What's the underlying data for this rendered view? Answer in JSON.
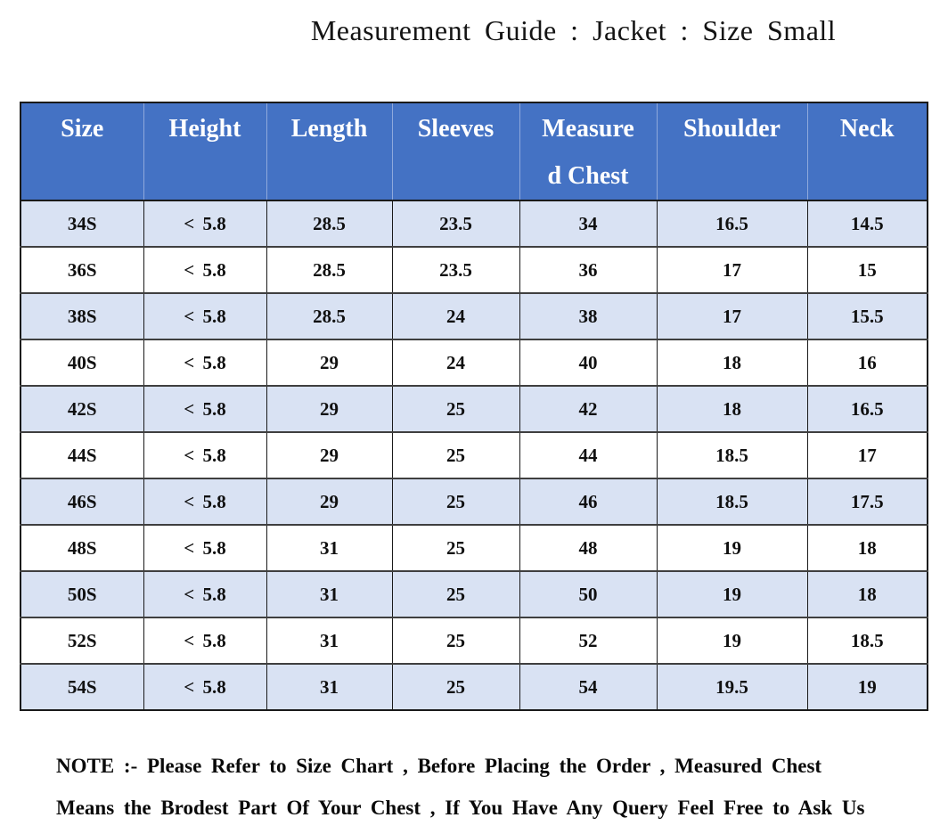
{
  "page_title": "Measurement Guide : Jacket : Size Small",
  "table": {
    "columns": [
      {
        "key": "size",
        "label": "Size",
        "lines": [
          "Size"
        ]
      },
      {
        "key": "height",
        "label": "Height",
        "lines": [
          "Height"
        ]
      },
      {
        "key": "length",
        "label": "Length",
        "lines": [
          "Length"
        ]
      },
      {
        "key": "sleeves",
        "label": "Sleeves",
        "lines": [
          "Sleeves"
        ]
      },
      {
        "key": "measured_chest",
        "label": "Measured Chest",
        "lines": [
          "Measure",
          "d Chest"
        ]
      },
      {
        "key": "shoulder",
        "label": "Shoulder",
        "lines": [
          "Shoulder"
        ]
      },
      {
        "key": "neck",
        "label": "Neck",
        "lines": [
          "Neck"
        ]
      }
    ],
    "rows": [
      [
        "34S",
        "< 5.8",
        "28.5",
        "23.5",
        "34",
        "16.5",
        "14.5"
      ],
      [
        "36S",
        "< 5.8",
        "28.5",
        "23.5",
        "36",
        "17",
        "15"
      ],
      [
        "38S",
        "< 5.8",
        "28.5",
        "24",
        "38",
        "17",
        "15.5"
      ],
      [
        "40S",
        "< 5.8",
        "29",
        "24",
        "40",
        "18",
        "16"
      ],
      [
        "42S",
        "< 5.8",
        "29",
        "25",
        "42",
        "18",
        "16.5"
      ],
      [
        "44S",
        "< 5.8",
        "29",
        "25",
        "44",
        "18.5",
        "17"
      ],
      [
        "46S",
        "< 5.8",
        "29",
        "25",
        "46",
        "18.5",
        "17.5"
      ],
      [
        "48S",
        "< 5.8",
        "31",
        "25",
        "48",
        "19",
        "18"
      ],
      [
        "50S",
        "< 5.8",
        "31",
        "25",
        "50",
        "19",
        "18"
      ],
      [
        "52S",
        "< 5.8",
        "31",
        "25",
        "52",
        "19",
        "18.5"
      ],
      [
        "54S",
        "< 5.8",
        "31",
        "25",
        "54",
        "19.5",
        "19"
      ]
    ]
  },
  "note": {
    "line1": "NOTE :- Please Refer to Size Chart , Before Placing the Order , Measured Chest",
    "line2": "Means the Brodest Part Of Your Chest , If You Have Any Query Feel Free to Ask Us"
  },
  "colors": {
    "header_bg": "#4472C4",
    "header_text": "#FFFFFF",
    "header_divider": "#8FA9DC",
    "stripe_bg": "#D9E2F3",
    "row_bg": "#FFFFFF",
    "border_dark": "#1A1A1A"
  }
}
